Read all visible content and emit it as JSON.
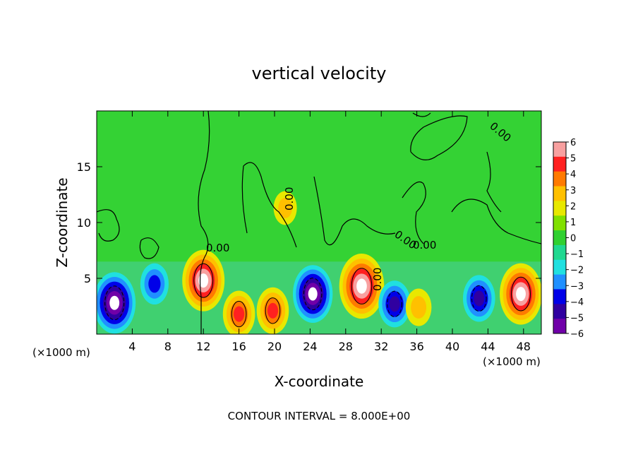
{
  "chart_data": {
    "type": "heatmap",
    "title": "vertical velocity",
    "xlabel": "X-coordinate",
    "ylabel": "Z-coordinate",
    "x_unit": "(×1000 m)",
    "x_unit_right": "(×1000 m)",
    "x_ticks": [
      4,
      8,
      12,
      16,
      20,
      24,
      28,
      32,
      36,
      40,
      44,
      48
    ],
    "y_ticks": [
      5,
      10,
      15
    ],
    "xlim": [
      0,
      50
    ],
    "ylim": [
      0,
      20
    ],
    "colorbar": {
      "ticks": [
        6,
        5,
        4,
        3,
        2,
        1,
        0,
        -1,
        -2,
        -3,
        -4,
        -5,
        -6
      ],
      "range": [
        -6,
        6
      ],
      "colors": [
        "#f8a0a0",
        "#ff2020",
        "#ff7a00",
        "#ffc000",
        "#e8e800",
        "#80e000",
        "#30d030",
        "#20d890",
        "#20e0e0",
        "#2090ff",
        "#0000e8",
        "#3000a0",
        "#7000a8"
      ]
    },
    "contour_labels": [
      "0.00",
      "0.00",
      "0.00",
      "0.00",
      "0.00",
      "0.00"
    ],
    "features": [
      {
        "x": 2,
        "z": 2.8,
        "value": -20
      },
      {
        "x": 6.5,
        "z": 4.5,
        "value": -9
      },
      {
        "x": 12,
        "z": 4.8,
        "value": 20
      },
      {
        "x": 16,
        "z": 1.8,
        "value": 12
      },
      {
        "x": 19.8,
        "z": 2.1,
        "value": 12
      },
      {
        "x": 21.2,
        "z": 11.3,
        "value": 5
      },
      {
        "x": 24.3,
        "z": 3.6,
        "value": -18
      },
      {
        "x": 29.8,
        "z": 4.3,
        "value": 22
      },
      {
        "x": 33.5,
        "z": 2.7,
        "value": -12
      },
      {
        "x": 36.2,
        "z": 2.4,
        "value": 7
      },
      {
        "x": 43,
        "z": 3.2,
        "value": -12
      },
      {
        "x": 47.7,
        "z": 3.6,
        "value": 20
      }
    ]
  },
  "footer": {
    "contour_interval": "CONTOUR INTERVAL = 8.000E+00"
  }
}
